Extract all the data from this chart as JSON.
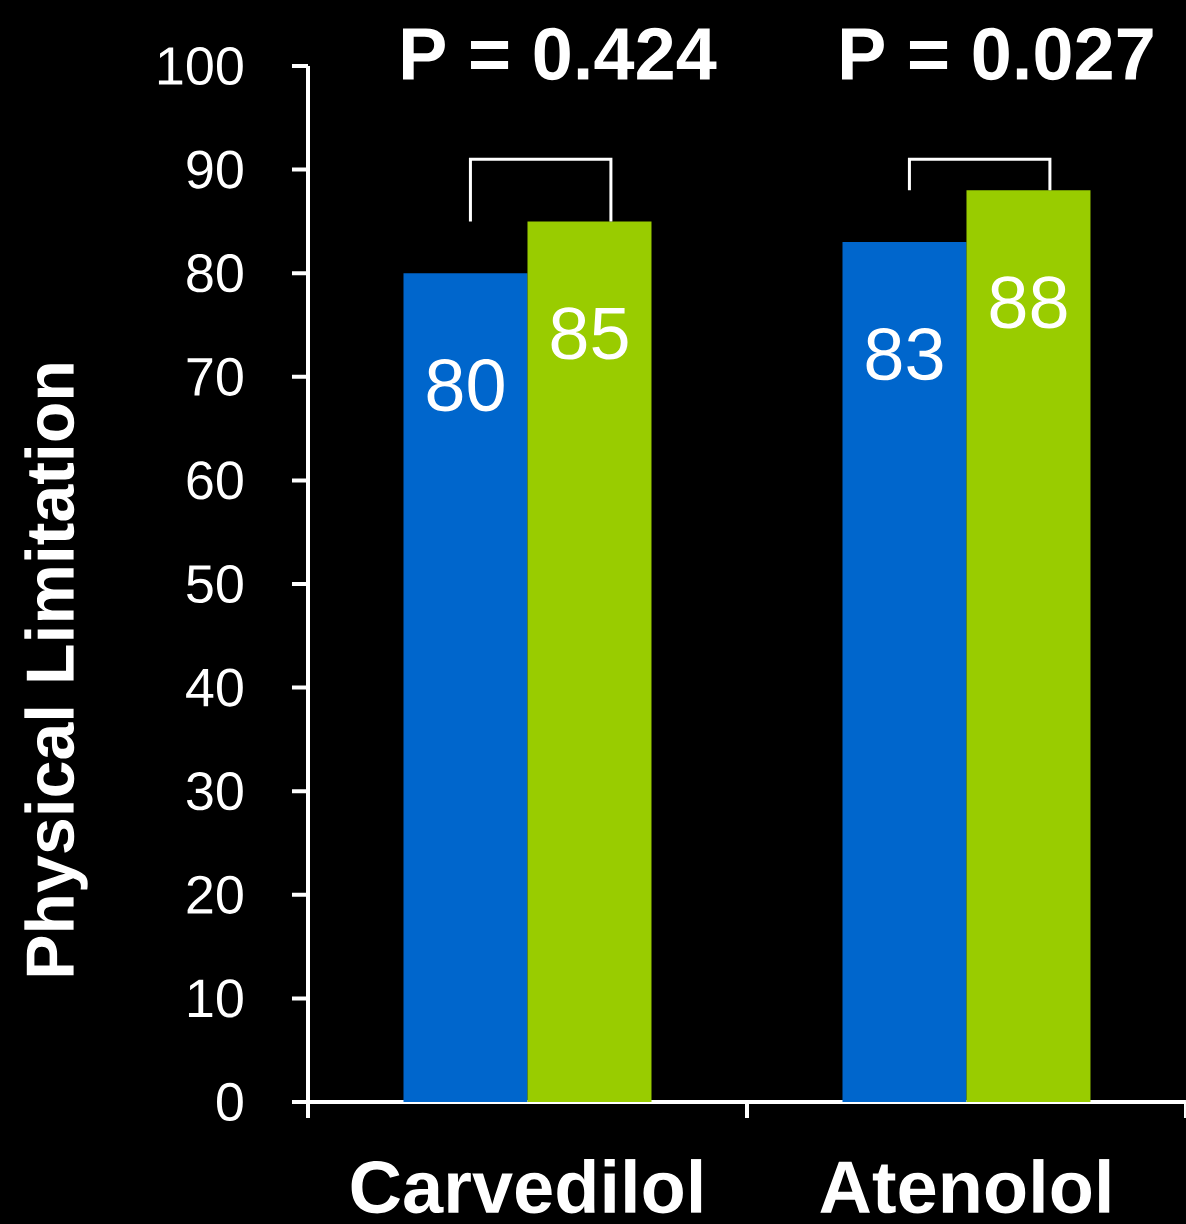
{
  "chart_data": {
    "type": "bar",
    "ylabel": "Physical Limitation",
    "categories": [
      "Carvedilol",
      "Atenolol"
    ],
    "series": [
      {
        "color": "#0066cc",
        "values": [
          80,
          83
        ]
      },
      {
        "color": "#99cc00",
        "values": [
          85,
          88
        ]
      }
    ],
    "ylim": [
      0,
      100
    ],
    "yticks": [
      0,
      10,
      20,
      30,
      40,
      50,
      60,
      70,
      80,
      90,
      100
    ],
    "data_labels": true,
    "annotations": [
      "P = 0.424",
      "P = 0.027"
    ]
  }
}
